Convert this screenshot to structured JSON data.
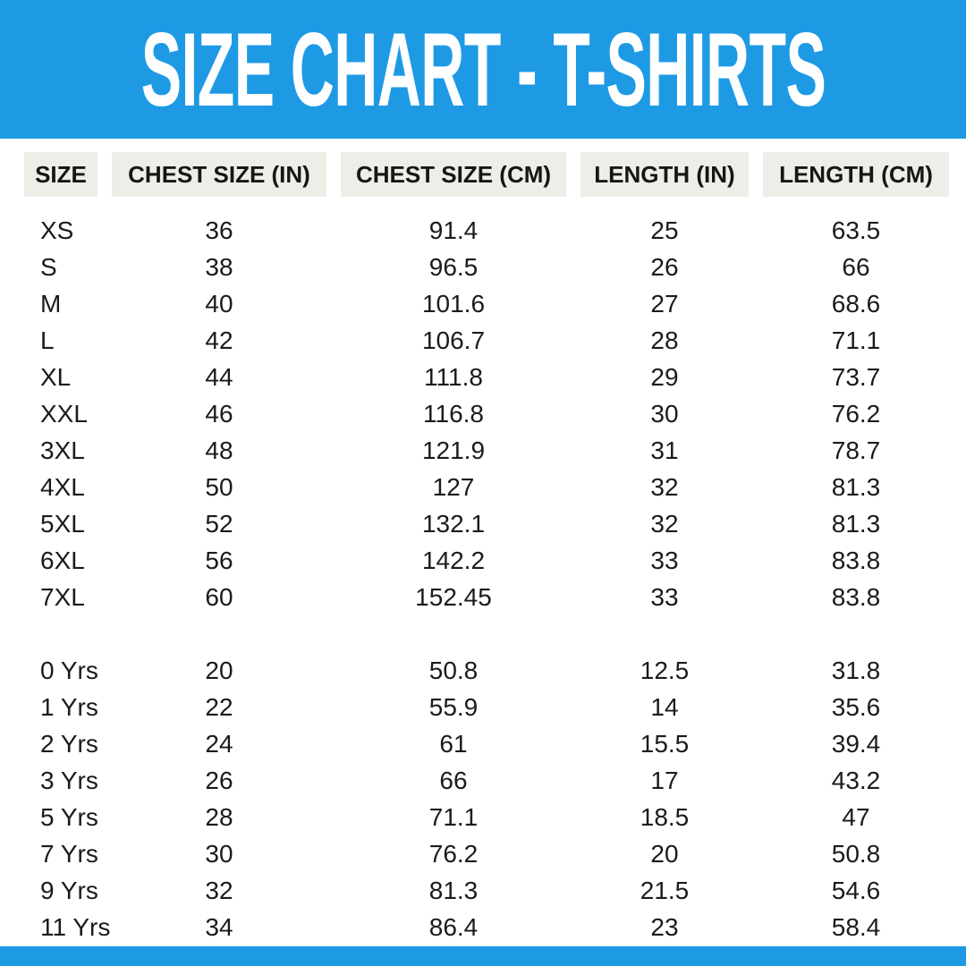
{
  "title": "SIZE CHART - T-SHIRTS",
  "colors": {
    "accent_blue": "#1e9ae5",
    "header_cell_bg": "#efede7",
    "text": "#1b1b1b",
    "title_text": "#ffffff"
  },
  "table": {
    "columns": [
      "SIZE",
      "CHEST SIZE (IN)",
      "CHEST SIZE (CM)",
      "LENGTH (IN)",
      "LENGTH (CM)"
    ],
    "sections": [
      {
        "name": "adult-sizes",
        "rows": [
          [
            "XS",
            "36",
            "91.4",
            "25",
            "63.5"
          ],
          [
            "S",
            "38",
            "96.5",
            "26",
            "66"
          ],
          [
            "M",
            "40",
            "101.6",
            "27",
            "68.6"
          ],
          [
            "L",
            "42",
            "106.7",
            "28",
            "71.1"
          ],
          [
            "XL",
            "44",
            "111.8",
            "29",
            "73.7"
          ],
          [
            "XXL",
            "46",
            "116.8",
            "30",
            "76.2"
          ],
          [
            "3XL",
            "48",
            "121.9",
            "31",
            "78.7"
          ],
          [
            "4XL",
            "50",
            "127",
            "32",
            "81.3"
          ],
          [
            "5XL",
            "52",
            "132.1",
            "32",
            "81.3"
          ],
          [
            "6XL",
            "56",
            "142.2",
            "33",
            "83.8"
          ],
          [
            "7XL",
            "60",
            "152.45",
            "33",
            "83.8"
          ]
        ]
      },
      {
        "name": "kids-sizes",
        "rows": [
          [
            "0 Yrs",
            "20",
            "50.8",
            "12.5",
            "31.8"
          ],
          [
            "1 Yrs",
            "22",
            "55.9",
            "14",
            "35.6"
          ],
          [
            "2 Yrs",
            "24",
            "61",
            "15.5",
            "39.4"
          ],
          [
            "3 Yrs",
            "26",
            "66",
            "17",
            "43.2"
          ],
          [
            "5 Yrs",
            "28",
            "71.1",
            "18.5",
            "47"
          ],
          [
            "7 Yrs",
            "30",
            "76.2",
            "20",
            "50.8"
          ],
          [
            "9 Yrs",
            "32",
            "81.3",
            "21.5",
            "54.6"
          ],
          [
            "11 Yrs",
            "34",
            "86.4",
            "23",
            "58.4"
          ]
        ]
      }
    ]
  },
  "chart_data": {
    "type": "table",
    "title": "SIZE CHART - T-SHIRTS",
    "columns": [
      "SIZE",
      "CHEST SIZE (IN)",
      "CHEST SIZE (CM)",
      "LENGTH (IN)",
      "LENGTH (CM)"
    ],
    "rows": [
      [
        "XS",
        36,
        91.4,
        25,
        63.5
      ],
      [
        "S",
        38,
        96.5,
        26,
        66
      ],
      [
        "M",
        40,
        101.6,
        27,
        68.6
      ],
      [
        "L",
        42,
        106.7,
        28,
        71.1
      ],
      [
        "XL",
        44,
        111.8,
        29,
        73.7
      ],
      [
        "XXL",
        46,
        116.8,
        30,
        76.2
      ],
      [
        "3XL",
        48,
        121.9,
        31,
        78.7
      ],
      [
        "4XL",
        50,
        127,
        32,
        81.3
      ],
      [
        "5XL",
        52,
        132.1,
        32,
        81.3
      ],
      [
        "6XL",
        56,
        142.2,
        33,
        83.8
      ],
      [
        "7XL",
        60,
        152.45,
        33,
        83.8
      ],
      [
        "0 Yrs",
        20,
        50.8,
        12.5,
        31.8
      ],
      [
        "1 Yrs",
        22,
        55.9,
        14,
        35.6
      ],
      [
        "2 Yrs",
        24,
        61,
        15.5,
        39.4
      ],
      [
        "3 Yrs",
        26,
        66,
        17,
        43.2
      ],
      [
        "5 Yrs",
        28,
        71.1,
        18.5,
        47
      ],
      [
        "7 Yrs",
        30,
        76.2,
        20,
        50.8
      ],
      [
        "9 Yrs",
        32,
        81.3,
        21.5,
        54.6
      ],
      [
        "11 Yrs",
        34,
        86.4,
        23,
        58.4
      ]
    ]
  }
}
